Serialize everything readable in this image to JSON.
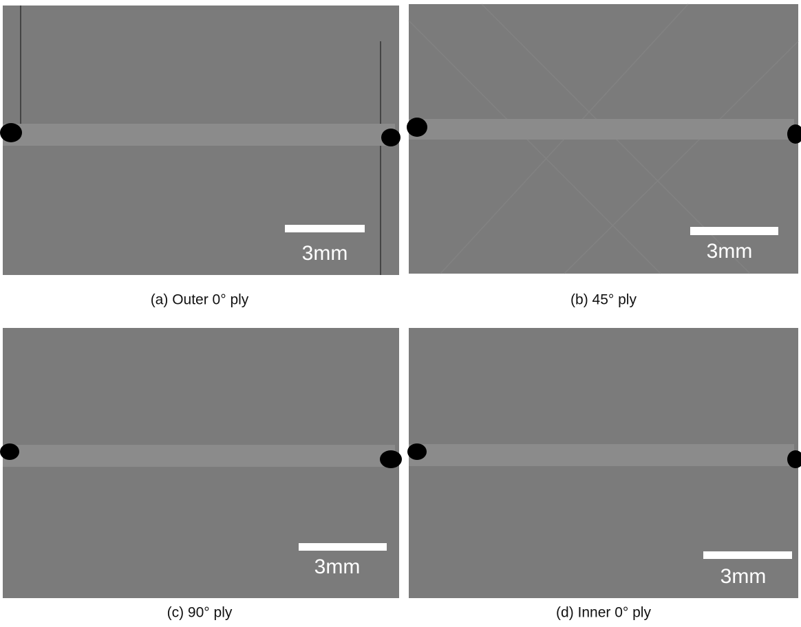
{
  "figure": {
    "panels": [
      {
        "caption": "(a) Outer 0° ply",
        "scale_label": "3mm"
      },
      {
        "caption": "(b) 45° ply",
        "scale_label": "3mm"
      },
      {
        "caption": "(c) 90° ply",
        "scale_label": "3mm"
      },
      {
        "caption": "(d) Inner 0° ply",
        "scale_label": "3mm"
      }
    ]
  }
}
